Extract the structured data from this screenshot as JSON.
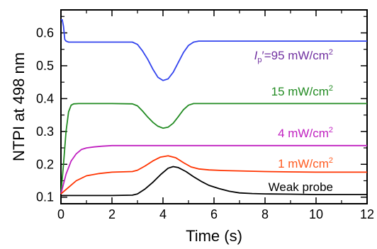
{
  "chart_data": {
    "type": "line",
    "xlabel": "Time (s)",
    "ylabel": "NTPI at 498 nm",
    "xlim": [
      0,
      12
    ],
    "ylim": [
      0.08,
      0.67
    ],
    "xticks": [
      "0",
      "2",
      "4",
      "6",
      "8",
      "10",
      "12"
    ],
    "yticks": [
      "0.1",
      "0.2",
      "0.3",
      "0.4",
      "0.5",
      "0.6"
    ],
    "grid": false,
    "legend": "none",
    "annotations": [
      {
        "series": "Ip95",
        "parts": [
          {
            "t": "I",
            "style": "ital"
          },
          {
            "t": "p",
            "style": "sub"
          },
          {
            "t": "′=95 mW/cm",
            "style": ""
          },
          {
            "t": "2",
            "style": "sup"
          }
        ],
        "color": "#7030a0"
      },
      {
        "series": "I15",
        "parts": [
          {
            "t": "15 mW/cm",
            "style": ""
          },
          {
            "t": "2",
            "style": "sup"
          }
        ],
        "color": "#228B22"
      },
      {
        "series": "I4",
        "parts": [
          {
            "t": "4 mW/cm",
            "style": ""
          },
          {
            "t": "2",
            "style": "sup"
          }
        ],
        "color": "#c020c0"
      },
      {
        "series": "I1",
        "parts": [
          {
            "t": "1 mW/cm",
            "style": ""
          },
          {
            "t": "2",
            "style": "sup"
          }
        ],
        "color": "#ff5a1f"
      },
      {
        "series": "weak",
        "parts": [
          {
            "t": "Weak probe",
            "style": ""
          }
        ],
        "color": "#000000"
      }
    ],
    "series": [
      {
        "id": "Ip95",
        "color": "#3344ee",
        "x": [
          0.0,
          0.05,
          0.1,
          0.15,
          0.2,
          0.3,
          0.5,
          1.0,
          2.0,
          2.8,
          3.0,
          3.2,
          3.4,
          3.6,
          3.8,
          4.0,
          4.2,
          4.4,
          4.6,
          4.8,
          5.0,
          5.2,
          5.4,
          6.0,
          8.0,
          10.0,
          12.0
        ],
        "y": [
          0.64,
          0.64,
          0.62,
          0.58,
          0.575,
          0.572,
          0.572,
          0.572,
          0.572,
          0.572,
          0.565,
          0.545,
          0.52,
          0.49,
          0.465,
          0.455,
          0.46,
          0.48,
          0.51,
          0.54,
          0.562,
          0.572,
          0.575,
          0.575,
          0.575,
          0.575,
          0.575
        ]
      },
      {
        "id": "I15",
        "color": "#228B22",
        "x": [
          0.0,
          0.1,
          0.2,
          0.3,
          0.4,
          0.5,
          0.7,
          1.0,
          2.0,
          2.8,
          3.0,
          3.2,
          3.4,
          3.6,
          3.8,
          4.0,
          4.2,
          4.4,
          4.6,
          4.8,
          5.0,
          5.2,
          5.5,
          6.0,
          8.0,
          10.0,
          12.0
        ],
        "y": [
          0.11,
          0.2,
          0.3,
          0.36,
          0.38,
          0.384,
          0.385,
          0.385,
          0.385,
          0.384,
          0.378,
          0.362,
          0.344,
          0.328,
          0.316,
          0.31,
          0.313,
          0.325,
          0.345,
          0.366,
          0.38,
          0.385,
          0.385,
          0.385,
          0.385,
          0.385,
          0.385
        ]
      },
      {
        "id": "I4",
        "color": "#c020c0",
        "x": [
          0.0,
          0.2,
          0.4,
          0.6,
          0.8,
          1.0,
          1.3,
          1.6,
          2.0,
          4.0,
          6.0,
          8.0,
          10.0,
          12.0
        ],
        "y": [
          0.11,
          0.17,
          0.21,
          0.232,
          0.245,
          0.25,
          0.253,
          0.255,
          0.257,
          0.257,
          0.257,
          0.257,
          0.257,
          0.257
        ]
      },
      {
        "id": "I1",
        "color": "#ff3300",
        "x": [
          0.0,
          0.3,
          0.6,
          1.0,
          1.5,
          2.0,
          2.8,
          3.0,
          3.3,
          3.6,
          3.9,
          4.2,
          4.5,
          4.8,
          5.1,
          5.4,
          5.8,
          6.4,
          7.0,
          8.0,
          9.0,
          10.0,
          12.0
        ],
        "y": [
          0.11,
          0.13,
          0.15,
          0.165,
          0.172,
          0.176,
          0.178,
          0.182,
          0.195,
          0.21,
          0.222,
          0.226,
          0.22,
          0.205,
          0.192,
          0.186,
          0.183,
          0.181,
          0.18,
          0.178,
          0.177,
          0.176,
          0.176
        ]
      },
      {
        "id": "weak",
        "color": "#000000",
        "x": [
          0.0,
          0.5,
          1.0,
          2.0,
          2.8,
          3.0,
          3.3,
          3.6,
          3.9,
          4.2,
          4.4,
          4.6,
          4.9,
          5.2,
          5.5,
          5.8,
          6.2,
          6.6,
          7.0,
          7.5,
          8.0,
          9.0,
          10.0,
          12.0
        ],
        "y": [
          0.105,
          0.105,
          0.105,
          0.105,
          0.106,
          0.11,
          0.125,
          0.145,
          0.168,
          0.188,
          0.193,
          0.19,
          0.178,
          0.162,
          0.148,
          0.136,
          0.126,
          0.118,
          0.113,
          0.111,
          0.11,
          0.109,
          0.108,
          0.108
        ]
      }
    ]
  }
}
